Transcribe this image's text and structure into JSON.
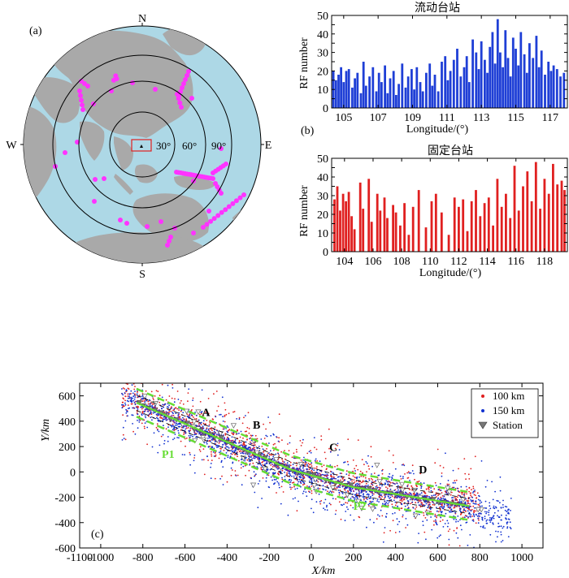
{
  "colors": {
    "ocean": "#add8e6",
    "land": "#a9a9a9",
    "event": "#ff33ff",
    "mobile_bar": "#1f3fd6",
    "fixed_bar": "#e02020",
    "red_dot": "#e02020",
    "blue_dot": "#1030d0",
    "trace": "#66dd33",
    "stations": "#777777"
  },
  "icons": {
    "station": "inverted-triangle-icon",
    "source_box": "red-rectangle-marker-icon",
    "center": "black-triangle-marker-icon"
  },
  "map": {
    "panel_label": "(a)",
    "north": "N",
    "south": "S",
    "west": "W",
    "east": "E",
    "ring_labels": [
      "30°",
      "60°",
      "90°"
    ]
  },
  "chart_data": [
    {
      "id": "mobile",
      "type": "bar",
      "title": "流动台站",
      "panel_label": "",
      "xlabel": "Longitude/(°)",
      "ylabel": "RF number",
      "xlim": [
        104.3,
        118.0
      ],
      "ylim": [
        0,
        50
      ],
      "xticks": [
        105,
        107,
        109,
        111,
        113,
        115,
        117
      ],
      "yticks": [
        0,
        5,
        10,
        15,
        20,
        25,
        30,
        35,
        40,
        45,
        50
      ],
      "ytick_labels": [
        "0",
        "",
        "10",
        "",
        "20",
        "",
        "30",
        "",
        "40",
        "",
        "50"
      ],
      "x": [
        104.4,
        104.55,
        104.7,
        104.85,
        105.0,
        105.15,
        105.3,
        105.5,
        105.65,
        105.8,
        106.0,
        106.15,
        106.3,
        106.5,
        106.7,
        106.9,
        107.05,
        107.2,
        107.4,
        107.55,
        107.7,
        107.9,
        108.05,
        108.2,
        108.4,
        108.6,
        108.75,
        108.95,
        109.1,
        109.25,
        109.45,
        109.6,
        109.8,
        110.0,
        110.15,
        110.3,
        110.5,
        110.7,
        110.9,
        111.05,
        111.2,
        111.4,
        111.6,
        111.8,
        112.0,
        112.15,
        112.3,
        112.5,
        112.7,
        112.85,
        113.0,
        113.2,
        113.35,
        113.5,
        113.65,
        113.8,
        113.95,
        114.1,
        114.25,
        114.4,
        114.55,
        114.7,
        114.85,
        115.0,
        115.15,
        115.3,
        115.5,
        115.65,
        115.8,
        116.0,
        116.2,
        116.35,
        116.5,
        116.7,
        116.9,
        117.05,
        117.2,
        117.4,
        117.6,
        117.8
      ],
      "values": [
        20,
        15,
        18,
        22,
        14,
        20,
        21,
        11,
        16,
        19,
        8,
        25,
        12,
        17,
        22,
        9,
        19,
        14,
        23,
        8,
        16,
        20,
        7,
        13,
        24,
        11,
        17,
        21,
        10,
        22,
        14,
        9,
        19,
        24,
        12,
        18,
        9,
        25,
        28,
        15,
        20,
        26,
        32,
        17,
        22,
        28,
        14,
        37,
        30,
        21,
        36,
        26,
        19,
        33,
        41,
        24,
        48,
        30,
        22,
        42,
        27,
        17,
        38,
        32,
        23,
        41,
        29,
        19,
        35,
        27,
        39,
        22,
        31,
        18,
        25,
        20,
        23,
        21,
        17,
        19
      ]
    },
    {
      "id": "fixed",
      "type": "bar",
      "title": "固定台站",
      "panel_label": "(b)",
      "xlabel": "Longitude/(°)",
      "ylabel": "RF number",
      "xlim": [
        103.1,
        119.6
      ],
      "ylim": [
        0,
        50
      ],
      "xticks": [
        104,
        106,
        108,
        110,
        112,
        114,
        116,
        118
      ],
      "yticks": [
        0,
        5,
        10,
        15,
        20,
        25,
        30,
        35,
        40,
        45,
        50
      ],
      "ytick_labels": [
        "0",
        "",
        "10",
        "",
        "20",
        "",
        "30",
        "",
        "40",
        "",
        "50"
      ],
      "x": [
        103.3,
        103.5,
        103.7,
        103.9,
        104.1,
        104.3,
        104.5,
        104.7,
        105.1,
        105.3,
        105.7,
        105.9,
        106.3,
        106.5,
        106.8,
        107.0,
        107.4,
        107.6,
        107.9,
        108.2,
        108.5,
        108.8,
        109.2,
        109.7,
        110.1,
        110.4,
        110.8,
        111.3,
        111.7,
        112.0,
        112.3,
        112.6,
        112.9,
        113.2,
        113.5,
        113.8,
        114.1,
        114.4,
        114.7,
        115.0,
        115.3,
        115.6,
        115.9,
        116.2,
        116.5,
        116.8,
        117.1,
        117.4,
        117.7,
        118.0,
        118.3,
        118.6,
        118.9,
        119.2,
        119.4
      ],
      "values": [
        28,
        35,
        22,
        31,
        27,
        32,
        19,
        12,
        37,
        23,
        39,
        16,
        31,
        22,
        29,
        18,
        25,
        21,
        14,
        26,
        9,
        24,
        33,
        13,
        27,
        31,
        21,
        9,
        29,
        24,
        28,
        11,
        27,
        33,
        19,
        26,
        29,
        14,
        39,
        24,
        31,
        18,
        46,
        22,
        35,
        43,
        27,
        48,
        23,
        39,
        31,
        47,
        36,
        38,
        33
      ]
    },
    {
      "id": "scatter",
      "type": "scatter",
      "title": "",
      "panel_label": "(c)",
      "xlabel": "X/km",
      "ylabel": "Y/km",
      "xlim": [
        -1100,
        1100
      ],
      "ylim": [
        -600,
        700
      ],
      "xticks": [
        -1100,
        -1000,
        -800,
        -600,
        -400,
        -200,
        0,
        200,
        400,
        600,
        800,
        1000
      ],
      "yticks": [
        -600,
        -400,
        -200,
        0,
        200,
        400,
        600
      ],
      "legend": {
        "position": "top-right",
        "entries": [
          {
            "label": "100 km",
            "marker": "red-dot"
          },
          {
            "label": "150 km",
            "marker": "blue-dot"
          },
          {
            "label": "Station",
            "marker": "inverted-triangle"
          }
        ]
      },
      "profile_labels": [
        {
          "text": "A",
          "x": -500,
          "y": 440
        },
        {
          "text": "B",
          "x": -260,
          "y": 340
        },
        {
          "text": "C",
          "x": 105,
          "y": 165
        },
        {
          "text": "D",
          "x": 530,
          "y": -10
        },
        {
          "text": "P1",
          "x": -680,
          "y": 110
        },
        {
          "text": "P2",
          "x": 230,
          "y": -300
        }
      ]
    }
  ]
}
